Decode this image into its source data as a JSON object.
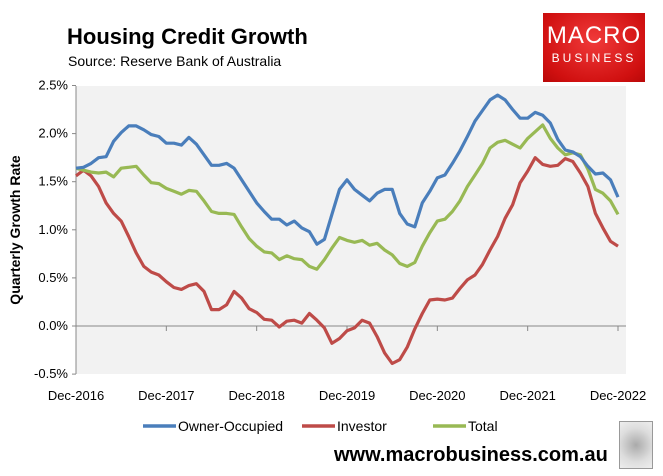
{
  "header": {
    "title": "Housing Credit Growth",
    "subtitle": "Source: Reserve Bank of Australia"
  },
  "logo": {
    "line1": "MACRO",
    "line2": "BUSINESS",
    "color": "#e01e1e"
  },
  "footer": {
    "url": "www.macrobusiness.com.au",
    "wolf_icon": "wolf-icon"
  },
  "chart_data": {
    "type": "line",
    "title": "Housing Credit Growth",
    "ylabel": "Quarterly Growth Rate",
    "xlabel": "",
    "x_start": "Dec-2016",
    "x_end": "Dec-2022",
    "frequency": "monthly",
    "xticks": [
      "Dec-2016",
      "Dec-2017",
      "Dec-2018",
      "Dec-2019",
      "Dec-2020",
      "Dec-2021",
      "Dec-2022"
    ],
    "yticks": [
      "-0.5%",
      "0.0%",
      "0.5%",
      "1.0%",
      "1.5%",
      "2.0%",
      "2.5%"
    ],
    "ylim": [
      -0.5,
      2.5
    ],
    "grid": false,
    "legend": "bottom",
    "background": "#f2f2f2",
    "series": [
      {
        "name": "Owner-Occupied",
        "color": "#4a7ebb",
        "values": [
          1.64,
          1.65,
          1.69,
          1.75,
          1.76,
          1.92,
          2.01,
          2.08,
          2.08,
          2.04,
          1.99,
          1.97,
          1.9,
          1.9,
          1.88,
          1.96,
          1.89,
          1.78,
          1.67,
          1.67,
          1.69,
          1.64,
          1.52,
          1.4,
          1.28,
          1.19,
          1.11,
          1.11,
          1.05,
          1.09,
          1.02,
          0.98,
          0.85,
          0.9,
          1.16,
          1.42,
          1.52,
          1.42,
          1.36,
          1.3,
          1.38,
          1.42,
          1.42,
          1.17,
          1.06,
          1.03,
          1.28,
          1.4,
          1.54,
          1.57,
          1.69,
          1.82,
          1.97,
          2.13,
          2.24,
          2.35,
          2.4,
          2.35,
          2.25,
          2.16,
          2.16,
          2.22,
          2.19,
          2.11,
          1.94,
          1.83,
          1.81,
          1.76,
          1.66,
          1.58,
          1.59,
          1.52,
          1.34
        ]
      },
      {
        "name": "Investor",
        "color": "#be4b48",
        "values": [
          1.56,
          1.62,
          1.56,
          1.45,
          1.28,
          1.17,
          1.09,
          0.93,
          0.76,
          0.62,
          0.56,
          0.53,
          0.46,
          0.4,
          0.38,
          0.42,
          0.44,
          0.36,
          0.17,
          0.17,
          0.22,
          0.36,
          0.29,
          0.18,
          0.14,
          0.07,
          0.06,
          -0.01,
          0.05,
          0.06,
          0.03,
          0.13,
          0.06,
          -0.02,
          -0.18,
          -0.13,
          -0.05,
          -0.02,
          0.06,
          0.03,
          -0.11,
          -0.28,
          -0.39,
          -0.35,
          -0.22,
          -0.03,
          0.13,
          0.27,
          0.28,
          0.27,
          0.29,
          0.39,
          0.48,
          0.53,
          0.64,
          0.79,
          0.93,
          1.12,
          1.26,
          1.49,
          1.61,
          1.75,
          1.68,
          1.66,
          1.67,
          1.74,
          1.71,
          1.59,
          1.45,
          1.17,
          1.02,
          0.88,
          0.83
        ]
      },
      {
        "name": "Total",
        "color": "#98b954",
        "values": [
          1.64,
          1.62,
          1.6,
          1.59,
          1.6,
          1.55,
          1.64,
          1.65,
          1.66,
          1.57,
          1.49,
          1.48,
          1.43,
          1.4,
          1.37,
          1.41,
          1.4,
          1.3,
          1.19,
          1.17,
          1.17,
          1.16,
          1.03,
          0.91,
          0.83,
          0.77,
          0.76,
          0.69,
          0.73,
          0.7,
          0.69,
          0.62,
          0.59,
          0.69,
          0.81,
          0.92,
          0.89,
          0.87,
          0.89,
          0.84,
          0.86,
          0.79,
          0.74,
          0.65,
          0.62,
          0.66,
          0.83,
          0.97,
          1.09,
          1.11,
          1.19,
          1.3,
          1.45,
          1.57,
          1.69,
          1.85,
          1.91,
          1.93,
          1.89,
          1.85,
          1.95,
          2.02,
          2.09,
          1.95,
          1.85,
          1.78,
          1.8,
          1.78,
          1.63,
          1.42,
          1.38,
          1.3,
          1.16
        ]
      }
    ]
  }
}
